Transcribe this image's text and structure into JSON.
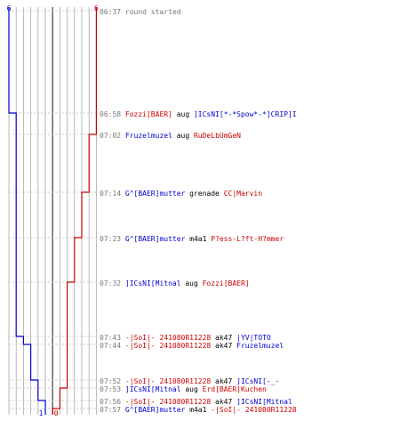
{
  "chart_data": {
    "type": "line",
    "title": "",
    "team_blue_start": "6",
    "team_red_start": "6",
    "team_blue_end": "1",
    "team_red_end": "0",
    "colors": {
      "blue": "#0000cc",
      "red": "#cc0000",
      "time": "#777777",
      "grid": "#aaaaaa",
      "axis": "#555555",
      "weapon": "#000000"
    },
    "events": [
      {
        "time": "06:37",
        "parts": [
          {
            "t": "round started",
            "c": "time"
          }
        ],
        "blue": 6,
        "red": 6
      },
      {
        "time": "06:58",
        "parts": [
          {
            "t": "Fozzi[BAER]",
            "c": "red"
          },
          {
            "t": " aug ",
            "c": "weapon"
          },
          {
            "t": "]ICsNI[*-*Spow*-*]CRIP]I",
            "c": "blue"
          }
        ],
        "blue": 5,
        "red": 6
      },
      {
        "time": "07:02",
        "parts": [
          {
            "t": "Fruzelmuzel",
            "c": "blue"
          },
          {
            "t": " aug ",
            "c": "weapon"
          },
          {
            "t": "RuDeLbUmGeN",
            "c": "red"
          }
        ],
        "blue": 5,
        "red": 5
      },
      {
        "time": "07:14",
        "parts": [
          {
            "t": "G^[BAER]mutter",
            "c": "blue"
          },
          {
            "t": " grenade ",
            "c": "weapon"
          },
          {
            "t": "CC|Marvin",
            "c": "red"
          }
        ],
        "blue": 5,
        "red": 4
      },
      {
        "time": "07:23",
        "parts": [
          {
            "t": "G^[BAER]mutter",
            "c": "blue"
          },
          {
            "t": " m4a1 ",
            "c": "weapon"
          },
          {
            "t": "P?ess-L?ft-H?mmer",
            "c": "red"
          }
        ],
        "blue": 5,
        "red": 3
      },
      {
        "time": "07:32",
        "parts": [
          {
            "t": "]ICsNI[Mitnal",
            "c": "blue"
          },
          {
            "t": " aug ",
            "c": "weapon"
          },
          {
            "t": "Fozzi[BAER]",
            "c": "red"
          }
        ],
        "blue": 5,
        "red": 2
      },
      {
        "time": "07:43",
        "parts": [
          {
            "t": "-|SoI|- 241080R11228",
            "c": "red"
          },
          {
            "t": " ak47 ",
            "c": "weapon"
          },
          {
            "t": "|YV|TOTO",
            "c": "blue"
          }
        ],
        "blue": 4,
        "red": 2
      },
      {
        "time": "07:44",
        "parts": [
          {
            "t": "-|SoI|- 241080R11228",
            "c": "red"
          },
          {
            "t": " ak47 ",
            "c": "weapon"
          },
          {
            "t": "Fruzelmuzel",
            "c": "blue"
          }
        ],
        "blue": 3,
        "red": 2
      },
      {
        "time": "07:52",
        "parts": [
          {
            "t": "-|SoI|- 241080R11228",
            "c": "red"
          },
          {
            "t": " ak47 ",
            "c": "weapon"
          },
          {
            "t": "]ICsNI[-_-",
            "c": "blue"
          }
        ],
        "blue": 2,
        "red": 2
      },
      {
        "time": "07:53",
        "parts": [
          {
            "t": "]ICsNI[Mitnal",
            "c": "blue"
          },
          {
            "t": " aug ",
            "c": "weapon"
          },
          {
            "t": "Erd[BAER]Kuchen",
            "c": "red"
          }
        ],
        "blue": 2,
        "red": 1
      },
      {
        "time": "07:56",
        "parts": [
          {
            "t": "-|SoI|- 241080R11228",
            "c": "red"
          },
          {
            "t": " ak47 ",
            "c": "weapon"
          },
          {
            "t": "]ICsNI[Mitnal",
            "c": "blue"
          }
        ],
        "blue": 1,
        "red": 1
      },
      {
        "time": "07:57",
        "parts": [
          {
            "t": "G^[BAER]mutter",
            "c": "blue"
          },
          {
            "t": " m4a1 ",
            "c": "weapon"
          },
          {
            "t": "-|SoI|- 241080R11228",
            "c": "red"
          }
        ],
        "blue": 1,
        "red": 0
      }
    ]
  }
}
